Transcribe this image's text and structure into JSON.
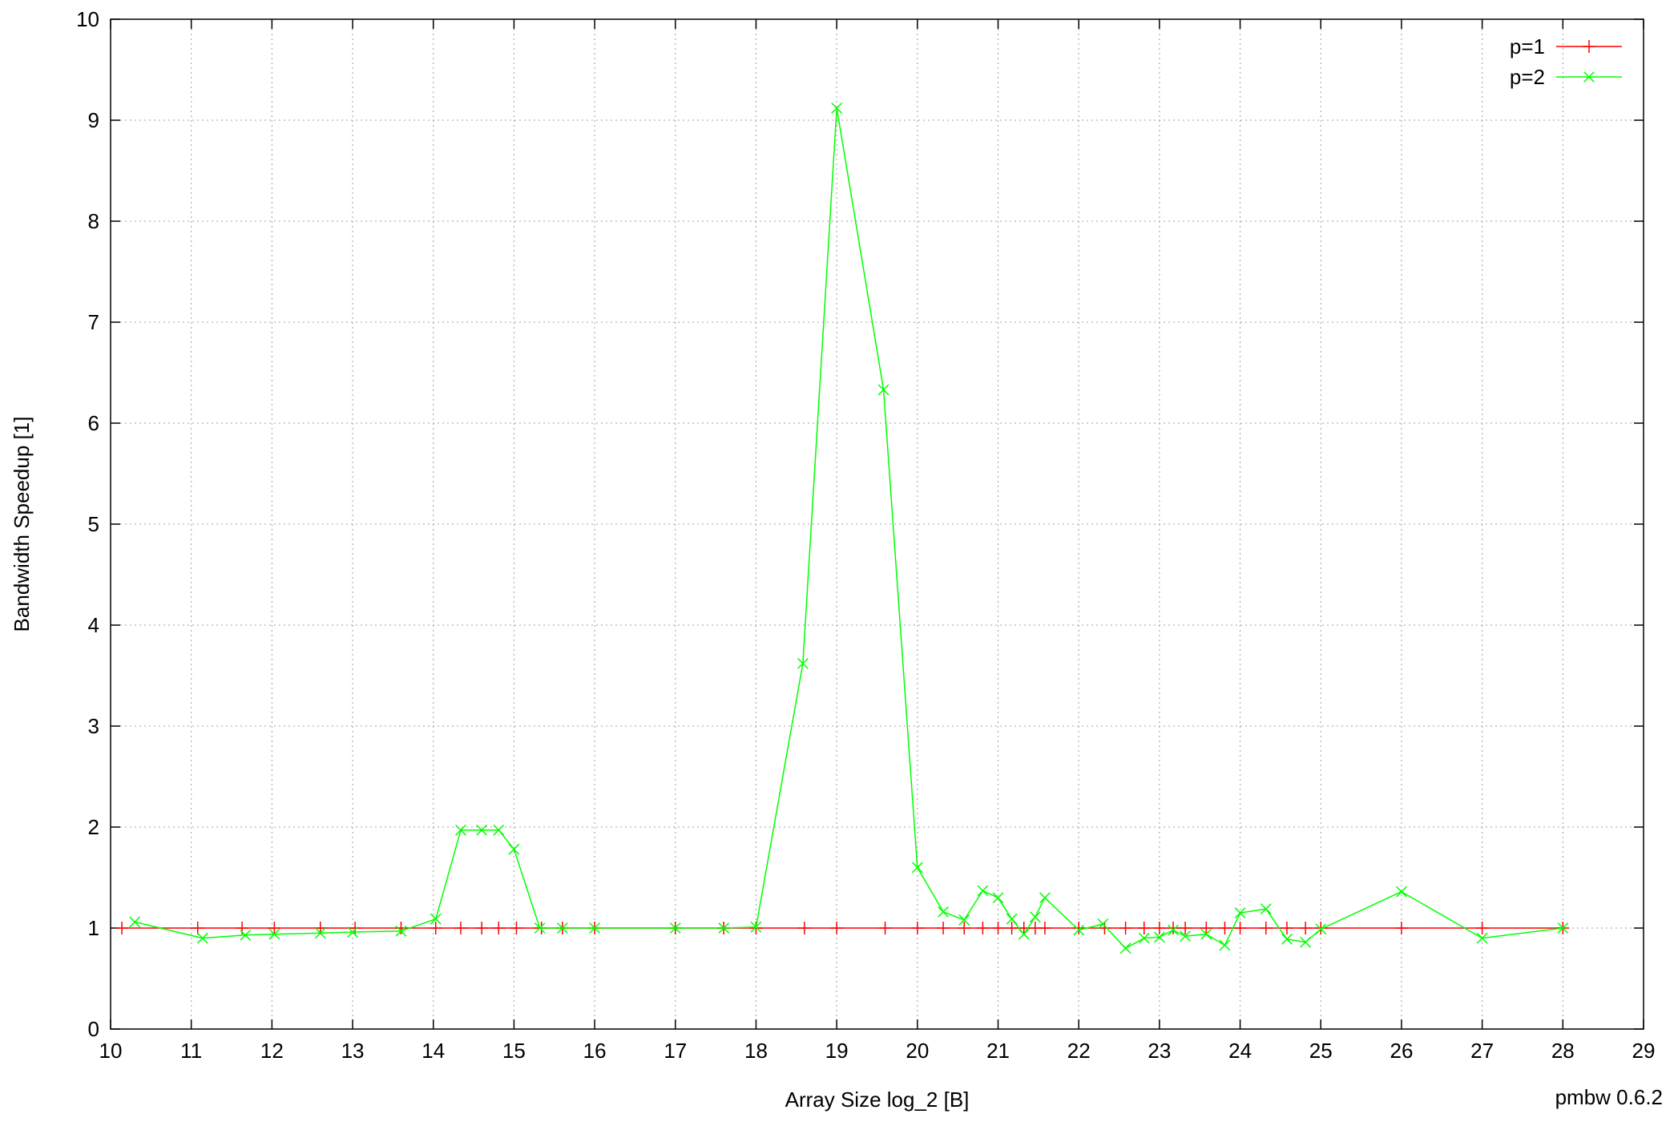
{
  "chart_data": {
    "type": "line",
    "xlabel": "Array Size log_2 [B]",
    "ylabel": "Bandwidth Speedup [1]",
    "xlim": [
      10,
      29
    ],
    "ylim": [
      0,
      10
    ],
    "xticks": [
      10,
      11,
      12,
      13,
      14,
      15,
      16,
      17,
      18,
      19,
      20,
      21,
      22,
      23,
      24,
      25,
      26,
      27,
      28,
      29
    ],
    "yticks": [
      0,
      1,
      2,
      3,
      4,
      5,
      6,
      7,
      8,
      9,
      10
    ],
    "grid": true,
    "legend": "top-right",
    "annotation": "pmbw 0.6.2",
    "series": [
      {
        "name": "p=1",
        "color": "#ff0000",
        "marker": "plus",
        "x": [
          10.14,
          11.08,
          11.63,
          12.03,
          12.6,
          13.03,
          13.6,
          14.03,
          14.34,
          14.6,
          14.81,
          15.03,
          15.34,
          15.6,
          16.0,
          17.0,
          17.6,
          18.0,
          18.6,
          19.0,
          19.6,
          20.0,
          20.32,
          20.58,
          20.81,
          21.0,
          21.17,
          21.32,
          21.46,
          21.58,
          22.0,
          22.32,
          22.58,
          22.81,
          23.0,
          23.17,
          23.32,
          23.58,
          23.81,
          24.0,
          24.32,
          24.58,
          24.81,
          25.0,
          26.0,
          27.0,
          28.0
        ],
        "y": [
          1,
          1,
          1,
          1,
          1,
          1,
          1,
          1,
          1,
          1,
          1,
          1,
          1,
          1,
          1,
          1,
          1,
          1,
          1,
          1,
          1,
          1,
          1,
          1,
          1,
          1,
          1,
          1,
          1,
          1,
          1,
          1,
          1,
          1,
          1,
          1,
          1,
          1,
          1,
          1,
          1,
          1,
          1,
          1,
          1,
          1,
          1
        ]
      },
      {
        "name": "p=2",
        "color": "#00ff00",
        "marker": "cross",
        "x": [
          10.3,
          11.14,
          11.67,
          12.03,
          12.6,
          13.0,
          13.6,
          14.03,
          14.34,
          14.6,
          14.81,
          15.0,
          15.32,
          15.6,
          16.0,
          17.0,
          17.6,
          18.0,
          18.58,
          19.0,
          19.58,
          20.0,
          20.32,
          20.58,
          20.81,
          21.0,
          21.17,
          21.32,
          21.46,
          21.58,
          22.0,
          22.3,
          22.58,
          22.81,
          23.0,
          23.17,
          23.32,
          23.58,
          23.81,
          24.0,
          24.32,
          24.58,
          24.81,
          25.0,
          26.0,
          27.0,
          28.0
        ],
        "y": [
          1.06,
          0.9,
          0.93,
          0.94,
          0.95,
          0.96,
          0.97,
          1.09,
          1.97,
          1.97,
          1.97,
          1.78,
          1.0,
          1.0,
          1.0,
          1.0,
          1.0,
          1.01,
          3.62,
          9.12,
          6.33,
          1.6,
          1.16,
          1.08,
          1.37,
          1.3,
          1.09,
          0.94,
          1.11,
          1.3,
          0.98,
          1.04,
          0.8,
          0.9,
          0.91,
          0.98,
          0.92,
          0.94,
          0.83,
          1.15,
          1.19,
          0.89,
          0.86,
          0.99,
          1.36,
          0.9,
          1.0
        ]
      }
    ]
  }
}
